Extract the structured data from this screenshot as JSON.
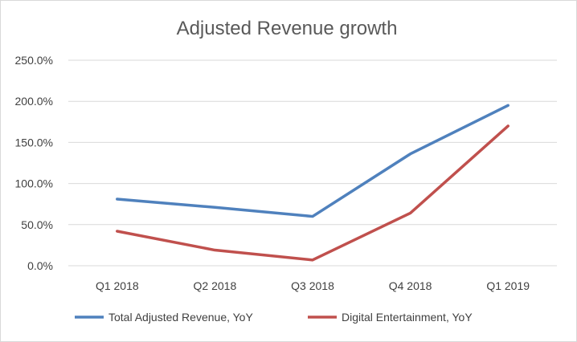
{
  "chart_data": {
    "type": "line",
    "title": "Adjusted Revenue growth",
    "xlabel": "",
    "ylabel": "",
    "categories": [
      "Q1 2018",
      "Q2 2018",
      "Q3 2018",
      "Q4 2018",
      "Q1 2019"
    ],
    "y_ticks": [
      "0.0%",
      "50.0%",
      "100.0%",
      "150.0%",
      "200.0%",
      "250.0%"
    ],
    "ylim": [
      0,
      250
    ],
    "grid": true,
    "legend_position": "bottom",
    "series": [
      {
        "name": "Total Adjusted Revenue, YoY",
        "color": "#4f81bd",
        "values": [
          81,
          71,
          60,
          136,
          195
        ]
      },
      {
        "name": "Digital Entertainment, YoY",
        "color": "#c0504d",
        "values": [
          42,
          19,
          7,
          64,
          170
        ]
      }
    ]
  }
}
